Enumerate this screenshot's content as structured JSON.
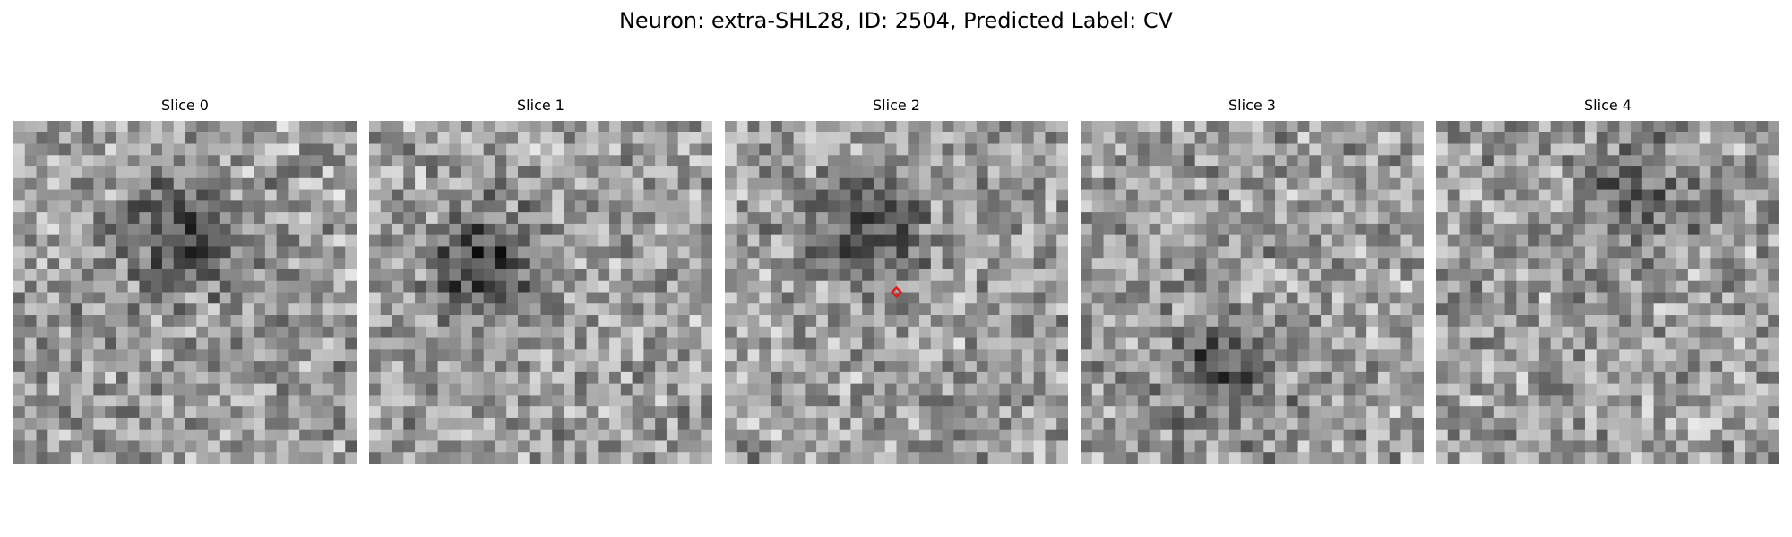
{
  "figure": {
    "title": "Neuron: extra-SHL28, ID: 2504, Predicted Label: CV"
  },
  "slices": [
    {
      "title": "Slice 0",
      "blob_center": [
        0.47,
        0.33
      ],
      "blob_strength": 0.35
    },
    {
      "title": "Slice 1",
      "blob_center": [
        0.32,
        0.4
      ],
      "blob_strength": 0.38
    },
    {
      "title": "Slice 2",
      "blob_center": [
        0.4,
        0.3
      ],
      "blob_strength": 0.3,
      "marker": {
        "center": [
          0.5,
          0.5
        ],
        "color": "#e31a1c",
        "shape": "diamond"
      }
    },
    {
      "title": "Slice 3",
      "blob_center": [
        0.4,
        0.7
      ],
      "blob_strength": 0.3
    },
    {
      "title": "Slice 4",
      "blob_center": [
        0.55,
        0.2
      ],
      "blob_strength": 0.25
    }
  ],
  "image": {
    "grid": 30,
    "colormap": "gray"
  }
}
